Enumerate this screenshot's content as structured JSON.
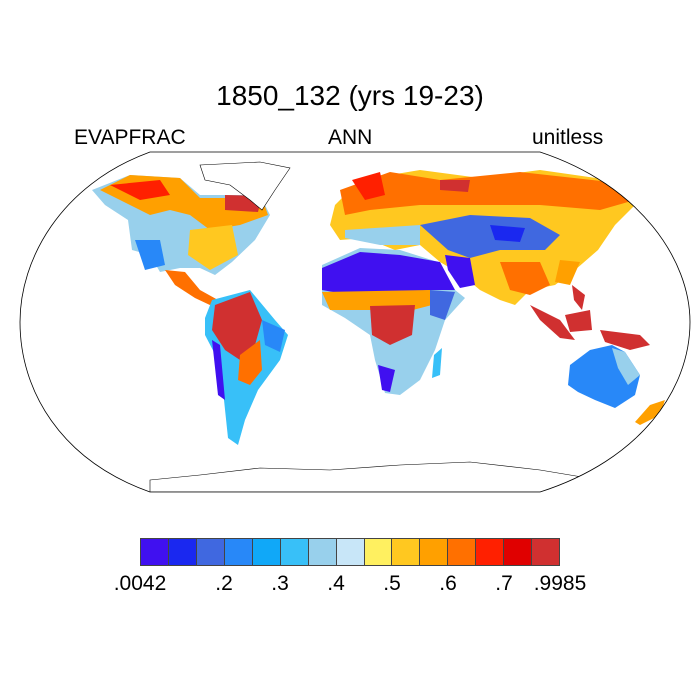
{
  "title": "1850_132 (yrs 19-23)",
  "left_label": "EVAPFRAC",
  "center_label": "ANN",
  "right_label": "unitless",
  "colorbar": {
    "colors": [
      "#4010f0",
      "#1a28f0",
      "#4068e0",
      "#2888f8",
      "#10a8f8",
      "#38c0f8",
      "#98d0ec",
      "#c8e6f8",
      "#fff060",
      "#ffc820",
      "#ffa000",
      "#ff7000",
      "#ff2000",
      "#e00000",
      "#d03030"
    ],
    "labels": [
      ".0042",
      ".2",
      ".3",
      ".4",
      ".5",
      ".6",
      ".7",
      ".9985"
    ]
  }
}
